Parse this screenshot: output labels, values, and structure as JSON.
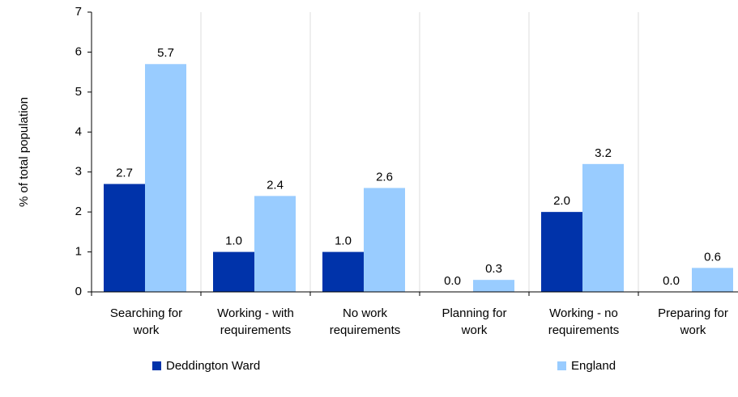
{
  "chart_data": {
    "type": "bar",
    "categories": [
      [
        "Searching for",
        "work"
      ],
      [
        "Working - with",
        "requirements"
      ],
      [
        "No work",
        "requirements"
      ],
      [
        "Planning for",
        "work"
      ],
      [
        "Working - no",
        "requirements"
      ],
      [
        "Preparing for",
        "work"
      ]
    ],
    "series": [
      {
        "name": "Deddington Ward",
        "color": "#0033aa",
        "values": [
          2.7,
          1,
          1,
          0,
          2,
          0
        ],
        "value_labels": [
          "2.7",
          "1.0",
          "1.0",
          "0.0",
          "2.0",
          "0.0"
        ]
      },
      {
        "name": "England",
        "color": "#99ccff",
        "values": [
          5.7,
          2.4,
          2.6,
          0.3,
          3.2,
          0.6
        ],
        "value_labels": [
          "5.7",
          "2.4",
          "2.6",
          "0.3",
          "3.2",
          "0.6"
        ]
      }
    ],
    "ylabel": "% of total population",
    "ylim": [
      0,
      7
    ],
    "yticks": [
      0,
      1,
      2,
      3,
      4,
      5,
      6,
      7
    ]
  }
}
